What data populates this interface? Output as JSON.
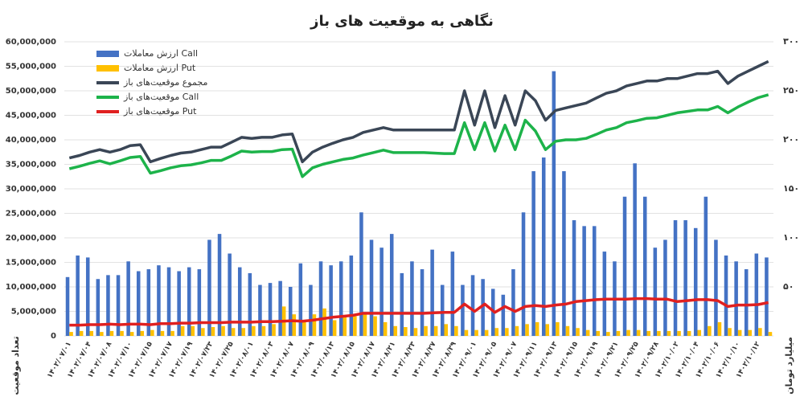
{
  "chart_data": {
    "type": "bar-line",
    "title": "نگاهی به موقعیت های باز",
    "y_label": "تعداد موقعیت",
    "y2_label": "میلیارد تومان",
    "categories": [
      "۱۴۰۲/۰۷/۰۱",
      null,
      "۱۴۰۲/۰۷/۰۴",
      null,
      "۱۴۰۲/۰۷/۰۸",
      null,
      "۱۴۰۲/۰۷/۱۰",
      null,
      "۱۴۰۲/۰۷/۱۵",
      null,
      "۱۴۰۲/۰۷/۱۷",
      null,
      "۱۴۰۲/۰۷/۱۹",
      null,
      "۱۴۰۲/۰۷/۲۳",
      null,
      "۱۴۰۲/۰۷/۲۵",
      null,
      "۱۴۰۲/۰۸/۰۱",
      null,
      "۱۴۰۲/۰۸/۰۳",
      null,
      "۱۴۰۲/۰۸/۰۷",
      null,
      "۱۴۰۲/۰۸/۰۹",
      null,
      "۱۴۰۲/۰۸/۱۳",
      null,
      "۱۴۰۲/۰۸/۱۵",
      null,
      "۱۴۰۲/۰۸/۱۷",
      null,
      "۱۴۰۲/۰۸/۲۱",
      null,
      "۱۴۰۲/۰۸/۲۳",
      null,
      "۱۴۰۲/۰۸/۲۷",
      null,
      "۱۴۰۲/۰۸/۲۹",
      null,
      "۱۴۰۲/۰۹/۰۱",
      null,
      "۱۴۰۲/۰۹/۰۵",
      null,
      "۱۴۰۲/۰۹/۰۷",
      null,
      "۱۴۰۲/۰۹/۱۱",
      null,
      "۱۴۰۲/۰۹/۱۳",
      null,
      "۱۴۰۲/۰۹/۱۵",
      null,
      "۱۴۰۲/۰۹/۱۹",
      null,
      "۱۴۰۲/۰۹/۲۱",
      null,
      "۱۴۰۲/۰۹/۲۵",
      null,
      "۱۴۰۲/۰۹/۲۸",
      null,
      "۱۴۰۲/۱۰/۰۲",
      null,
      "۱۴۰۲/۱۰/۰۴",
      null,
      "۱۴۰۲/۱۰/۰۶",
      null,
      "۱۴۰۲/۱۰/۱۰",
      null,
      "۱۴۰۲/۱۰/۱۲",
      null
    ],
    "series": [
      {
        "name": "ارزش معاملات Call",
        "type": "bar",
        "axis": "y2",
        "color": "#4472c4",
        "values": [
          60,
          82,
          80,
          58,
          62,
          62,
          76,
          66,
          68,
          72,
          70,
          66,
          70,
          68,
          98,
          104,
          84,
          70,
          64,
          52,
          54,
          56,
          50,
          74,
          52,
          76,
          72,
          76,
          82,
          126,
          98,
          90,
          104,
          64,
          76,
          68,
          88,
          52,
          86,
          52,
          62,
          58,
          48,
          42,
          68,
          126,
          168,
          182,
          270,
          168,
          118,
          112,
          112,
          86,
          76,
          142,
          176,
          142,
          90,
          98,
          118,
          118,
          110,
          142,
          98,
          82,
          76,
          68,
          84,
          80
        ]
      },
      {
        "name": "ارزش معاملات Put",
        "type": "bar",
        "axis": "y2",
        "color": "#ffc000",
        "values": [
          4,
          5,
          5,
          4,
          5,
          5,
          4,
          5,
          6,
          5,
          5,
          10,
          10,
          8,
          9,
          10,
          8,
          8,
          10,
          10,
          12,
          30,
          22,
          14,
          22,
          28,
          16,
          20,
          20,
          22,
          20,
          14,
          10,
          9,
          8,
          10,
          10,
          12,
          10,
          6,
          6,
          6,
          8,
          8,
          10,
          12,
          14,
          12,
          14,
          10,
          8,
          6,
          5,
          4,
          5,
          6,
          6,
          5,
          5,
          5,
          5,
          5,
          6,
          10,
          14,
          8,
          6,
          6,
          8,
          4
        ]
      },
      {
        "name": "مجموع موقعیت‌های باز",
        "type": "line",
        "color": "#3a4656",
        "values": [
          36300000,
          36800000,
          37500000,
          38000000,
          37500000,
          38000000,
          38800000,
          39000000,
          35500000,
          36200000,
          36800000,
          37300000,
          37500000,
          38000000,
          38500000,
          38500000,
          39500000,
          40500000,
          40300000,
          40500000,
          40500000,
          41000000,
          41200000,
          35500000,
          37500000,
          38500000,
          39300000,
          40000000,
          40500000,
          41500000,
          42000000,
          42500000,
          42000000,
          42000000,
          42000000,
          42000000,
          42000000,
          42000000,
          42000000,
          50000000,
          43000000,
          50000000,
          42500000,
          49000000,
          43000000,
          50000000,
          48000000,
          44000000,
          46000000,
          46500000,
          47000000,
          47500000,
          48500000,
          49500000,
          50000000,
          51000000,
          51500000,
          52000000,
          52000000,
          52500000,
          52500000,
          53000000,
          53500000,
          53500000,
          54000000,
          51500000,
          53000000,
          54000000,
          55000000,
          56000000
        ]
      },
      {
        "name": "موقعیت‌های باز Call",
        "type": "line",
        "color": "#1db34a",
        "values": [
          34100000,
          34600000,
          35200000,
          35700000,
          35100000,
          35700000,
          36400000,
          36600000,
          33200000,
          33700000,
          34300000,
          34700000,
          34900000,
          35300000,
          35800000,
          35800000,
          36700000,
          37700000,
          37500000,
          37600000,
          37600000,
          38000000,
          38100000,
          32500000,
          34300000,
          35000000,
          35500000,
          36000000,
          36300000,
          36900000,
          37400000,
          37900000,
          37400000,
          37400000,
          37400000,
          37400000,
          37300000,
          37200000,
          37200000,
          43500000,
          38000000,
          43500000,
          37700000,
          43000000,
          38000000,
          44000000,
          41800000,
          38000000,
          39700000,
          40000000,
          40000000,
          40300000,
          41100000,
          42000000,
          42500000,
          43500000,
          43900000,
          44400000,
          44500000,
          45000000,
          45500000,
          45800000,
          46100000,
          46100000,
          46800000,
          45500000,
          46700000,
          47700000,
          48600000,
          49200000
        ]
      },
      {
        "name": "موقعیت‌های باز Put",
        "type": "line",
        "color": "#e02020",
        "values": [
          2200000,
          2200000,
          2300000,
          2300000,
          2400000,
          2300000,
          2400000,
          2400000,
          2300000,
          2500000,
          2500000,
          2600000,
          2600000,
          2700000,
          2700000,
          2700000,
          2800000,
          2800000,
          2800000,
          2900000,
          2900000,
          3000000,
          3100000,
          3000000,
          3200000,
          3500000,
          3800000,
          4000000,
          4200000,
          4600000,
          4600000,
          4600000,
          4600000,
          4600000,
          4600000,
          4600000,
          4700000,
          4800000,
          4800000,
          6500000,
          5000000,
          6500000,
          4800000,
          6000000,
          5000000,
          6000000,
          6200000,
          6000000,
          6300000,
          6500000,
          7000000,
          7200000,
          7400000,
          7500000,
          7500000,
          7500000,
          7600000,
          7600000,
          7500000,
          7500000,
          7000000,
          7200000,
          7400000,
          7400000,
          7200000,
          6000000,
          6300000,
          6300000,
          6400000,
          6800000
        ]
      }
    ],
    "ylim": [
      0,
      60000000
    ],
    "yticks": [
      0,
      {
        "value": 5000000,
        "label": "5,000,000"
      },
      {
        "value": 10000000,
        "label": "10,000,000"
      },
      {
        "value": 15000000,
        "label": "15,000,000"
      },
      {
        "value": 20000000,
        "label": "20,000,000"
      },
      {
        "value": 25000000,
        "label": "25,000,000"
      },
      {
        "value": 30000000,
        "label": "30,000,000"
      },
      {
        "value": 35000000,
        "label": "35,000,000"
      },
      {
        "value": 40000000,
        "label": "40,000,000"
      },
      {
        "value": 45000000,
        "label": "45,000,000"
      },
      {
        "value": 50000000,
        "label": "50,000,000"
      },
      {
        "value": 55000000,
        "label": "55,000,000"
      },
      {
        "value": 60000000,
        "label": "60,000,000"
      }
    ],
    "y2lim": [
      0,
      300
    ],
    "y2ticks": [
      {
        "value": 50,
        "label": "۵۰"
      },
      {
        "value": 100,
        "label": "۱۰۰"
      },
      {
        "value": 150,
        "label": "۱۵۰"
      },
      {
        "value": 200,
        "label": "۲۰۰"
      },
      {
        "value": 250,
        "label": "۲۵۰"
      },
      {
        "value": 300,
        "label": "۳۰۰"
      }
    ],
    "grid": true,
    "legend": "top-left"
  }
}
